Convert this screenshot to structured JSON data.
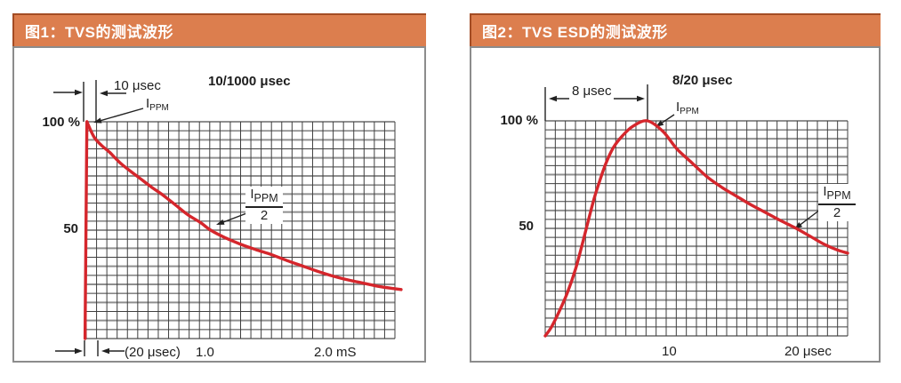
{
  "panels": [
    {
      "title": "图1：TVS的测试波形",
      "header_color": "#dc7e4e",
      "labels": {
        "y100": "100 %",
        "y50": "50",
        "rise_time": "10 μsec",
        "wave_name": "10/1000 μsec",
        "ippm_main": "I",
        "ippm_sub": "PPM",
        "half_num_main": "I",
        "half_num_sub": "PPM",
        "half_den": "2",
        "x_tick_1": "(20 μsec)",
        "x_tick_2": "1.0",
        "x_tick_3": "2.0 mS"
      }
    },
    {
      "title": "图2：TVS ESD的测试波形",
      "header_color": "#dc7e4e",
      "labels": {
        "y100": "100 %",
        "y50": "50",
        "rise_time": "8 μsec",
        "wave_name": "8/20 μsec",
        "ippm_main": "I",
        "ippm_sub": "PPM",
        "half_num_main": "I",
        "half_num_sub": "PPM",
        "half_den": "2",
        "x_tick_1": "10",
        "x_tick_2": "20 μsec"
      }
    }
  ],
  "chart_data": [
    {
      "type": "line",
      "title": "10/1000 μsec",
      "y_tick_labels": [
        "100 %",
        "50"
      ],
      "x_tick_labels": [
        "(20 μsec)",
        "1.0",
        "2.0 mS"
      ],
      "ylim": [
        0,
        100
      ],
      "y_unit": "percent of peak IPPM",
      "grid": {
        "on": true,
        "cols": 30,
        "rows": 24
      },
      "color": "#d5262c",
      "annotations": [
        "10 μsec rise time",
        "IPPM = 100 %",
        "IPPM/2 at 1.0 mS",
        "(20 μsec)"
      ],
      "x_encoding": "fraction of plotted width (0 = pulse start, decay half-value at 1.0 mS)",
      "series": [
        {
          "name": "rise",
          "smooth": false,
          "points": [
            [
              -0.004,
              0
            ],
            [
              0.002,
              100
            ]
          ]
        },
        {
          "name": "decay",
          "smooth": true,
          "points": [
            [
              0.002,
              100
            ],
            [
              0.025,
              93
            ],
            [
              0.05,
              89
            ],
            [
              0.075,
              86
            ],
            [
              0.11,
              81
            ],
            [
              0.145,
              77
            ],
            [
              0.173,
              74
            ],
            [
              0.21,
              70
            ],
            [
              0.25,
              66
            ],
            [
              0.29,
              61.5
            ],
            [
              0.33,
              57
            ],
            [
              0.37,
              53.5
            ],
            [
              0.403,
              50
            ],
            [
              0.45,
              46.5
            ],
            [
              0.5,
              43.5
            ],
            [
              0.55,
              41
            ],
            [
              0.6,
              38.7
            ],
            [
              0.65,
              36
            ],
            [
              0.7,
              33.5
            ],
            [
              0.75,
              31
            ],
            [
              0.8,
              28.8
            ],
            [
              0.85,
              27
            ],
            [
              0.9,
              25.5
            ],
            [
              0.95,
              24
            ],
            [
              1.0,
              23
            ],
            [
              1.02,
              22.6
            ]
          ]
        }
      ]
    },
    {
      "type": "line",
      "title": "8/20 μsec",
      "y_tick_labels": [
        "100 %",
        "50"
      ],
      "x_tick_labels": [
        "10",
        "20 μsec"
      ],
      "ylim": [
        0,
        100
      ],
      "y_unit": "percent of peak IPPM",
      "grid": {
        "on": true,
        "cols": 30,
        "rows": 24
      },
      "color": "#d5262c",
      "annotations": [
        "8 μsec rise time",
        "IPPM = 100 %",
        "IPPM/2 at 20 μsec"
      ],
      "x_encoding": "fraction of plotted width (peak at 8 μsec, half-value at 20 μsec)",
      "series": [
        {
          "name": "pulse",
          "smooth": true,
          "points": [
            [
              0,
              0
            ],
            [
              0.02,
              4
            ],
            [
              0.045,
              11
            ],
            [
              0.073,
              20
            ],
            [
              0.1,
              31
            ],
            [
              0.125,
              44
            ],
            [
              0.145,
              55
            ],
            [
              0.162,
              64
            ],
            [
              0.18,
              72
            ],
            [
              0.2,
              80
            ],
            [
              0.225,
              87.5
            ],
            [
              0.255,
              93
            ],
            [
              0.29,
              97.5
            ],
            [
              0.338,
              100
            ],
            [
              0.39,
              95
            ],
            [
              0.435,
              87
            ],
            [
              0.485,
              80.5
            ],
            [
              0.535,
              74
            ],
            [
              0.585,
              69
            ],
            [
              0.632,
              65
            ],
            [
              0.68,
              61
            ],
            [
              0.727,
              57.5
            ],
            [
              0.78,
              53.5
            ],
            [
              0.83,
              50
            ],
            [
              0.88,
              46
            ],
            [
              0.924,
              42.5
            ],
            [
              0.965,
              40
            ],
            [
              1.0,
              38.5
            ]
          ]
        }
      ]
    }
  ]
}
